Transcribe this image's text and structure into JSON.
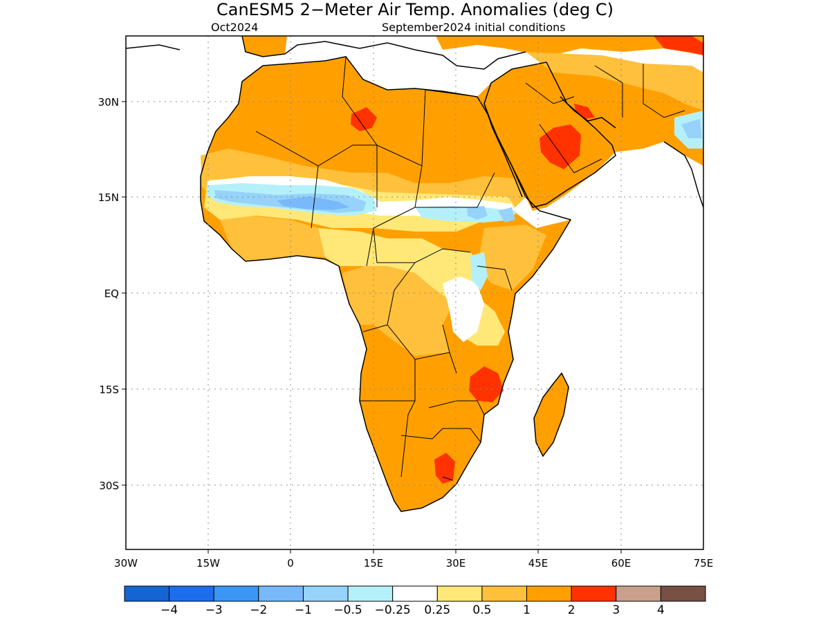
{
  "title": "CanESM5 2−Meter Air Temp. Anomalies (deg C)",
  "subtitle_left": "Oct2024",
  "subtitle_right": "September2024 initial conditions",
  "map": {
    "lon_range": [
      -30,
      75
    ],
    "lat_range": [
      -42,
      40
    ],
    "lon_ticks": [
      "30W",
      "15W",
      "0",
      "15E",
      "30E",
      "45E",
      "60E",
      "75E"
    ],
    "lat_ticks": [
      "30N",
      "15N",
      "EQ",
      "15S",
      "30S"
    ],
    "grid": "dotted"
  },
  "colorbar": {
    "colors": [
      "#1464d2",
      "#1e6eeb",
      "#3c96f5",
      "#78b9fa",
      "#96d2fa",
      "#b4f0fa",
      "#ffffff",
      "#ffe878",
      "#ffc03c",
      "#ffa000",
      "#ff3200",
      "#c8a08c",
      "#785044"
    ],
    "labels": [
      "−4",
      "−3",
      "−2",
      "−1",
      "−0.5",
      "−0.25",
      "0.25",
      "0.5",
      "1",
      "2",
      "3",
      "4"
    ]
  }
}
